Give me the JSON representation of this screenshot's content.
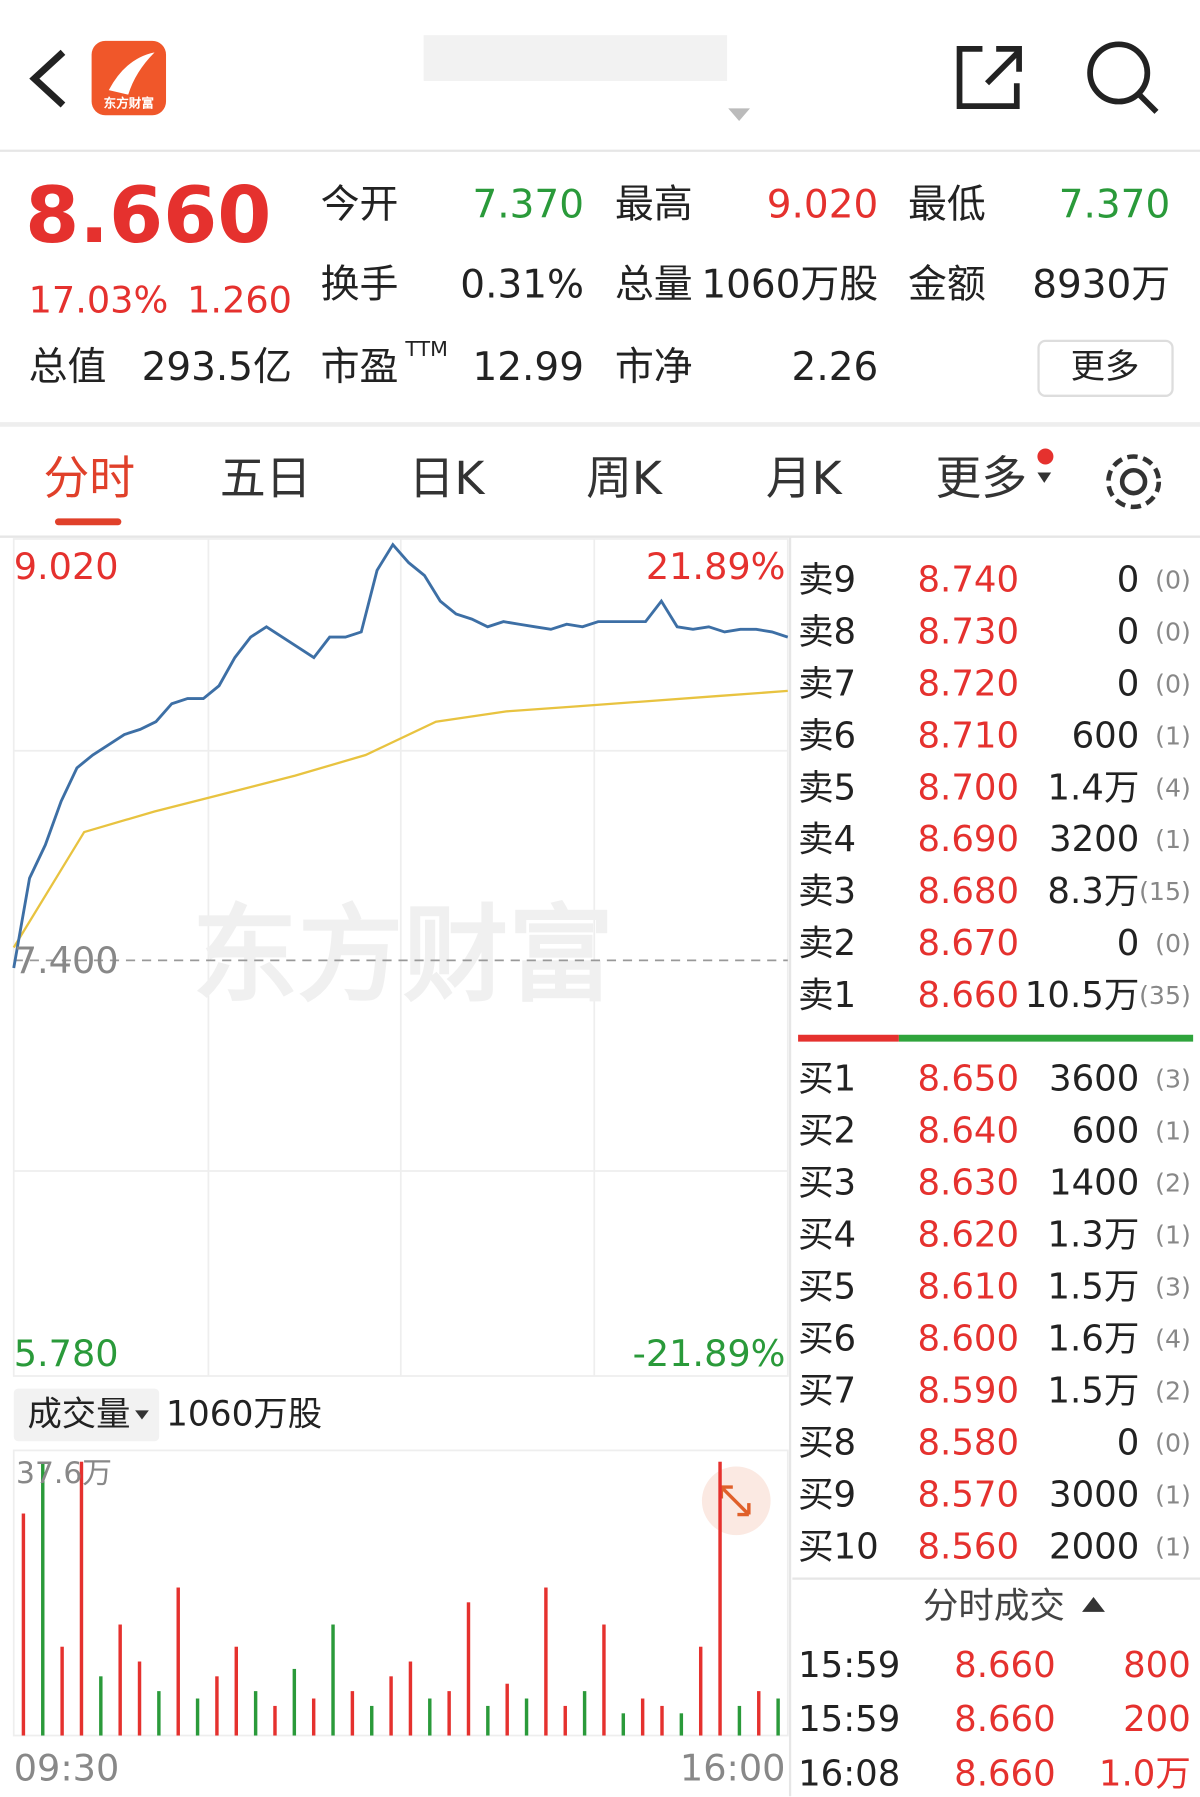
{
  "header": {
    "logo_text": "东方财富"
  },
  "quote": {
    "price": "8.660",
    "change_pct": "17.03%",
    "change": "1.260",
    "stats": [
      {
        "label": "今开",
        "value": "7.370",
        "tone": "down"
      },
      {
        "label": "最高",
        "value": "9.020",
        "tone": "up"
      },
      {
        "label": "最低",
        "value": "7.370",
        "tone": "down"
      },
      {
        "label": "换手",
        "value": "0.31%",
        "tone": "flat"
      },
      {
        "label": "总量",
        "value": "1060万股",
        "tone": "flat"
      },
      {
        "label": "金额",
        "value": "8930万",
        "tone": "flat"
      }
    ],
    "market_cap": {
      "label": "总值",
      "value": "293.5亿"
    },
    "pe": {
      "label": "市盈",
      "sup": "TTM",
      "value": "12.99"
    },
    "pb": {
      "label": "市净",
      "value": "2.26"
    },
    "more": "更多"
  },
  "tabs": [
    "分时",
    "五日",
    "日K",
    "周K",
    "月K",
    "更多"
  ],
  "intraday": {
    "y_top_label": "9.020",
    "y_top_pct": "21.89%",
    "prev_close_label": "7.400",
    "y_bottom_label": "5.780",
    "y_bottom_pct": "-21.89%",
    "ylim": [
      5.78,
      9.02
    ],
    "prev_close": 7.4,
    "watermark": "东方财富",
    "price": [
      7.37,
      7.72,
      7.85,
      8.02,
      8.15,
      8.2,
      8.24,
      8.28,
      8.3,
      8.33,
      8.4,
      8.42,
      8.42,
      8.47,
      8.58,
      8.66,
      8.7,
      8.66,
      8.62,
      8.58,
      8.66,
      8.66,
      8.68,
      8.92,
      9.02,
      8.95,
      8.9,
      8.8,
      8.75,
      8.73,
      8.7,
      8.72,
      8.71,
      8.7,
      8.69,
      8.71,
      8.7,
      8.72,
      8.72,
      8.72,
      8.72,
      8.8,
      8.7,
      8.69,
      8.7,
      8.68,
      8.69,
      8.69,
      8.68,
      8.66
    ],
    "avg": [
      7.45,
      7.9,
      7.98,
      8.05,
      8.12,
      8.2,
      8.33,
      8.37,
      8.39,
      8.41,
      8.43,
      8.45
    ]
  },
  "volume": {
    "selector": "成交量",
    "total": "1060万股",
    "ymax_label": "37.6万",
    "ylim": [
      0,
      37.6
    ],
    "values": [
      30,
      37,
      12,
      37,
      8,
      15,
      10,
      6,
      20,
      5,
      8,
      12,
      6,
      4,
      9,
      5,
      15,
      6,
      4,
      8,
      10,
      5,
      6,
      18,
      4,
      7,
      5,
      20,
      4,
      6,
      15,
      3,
      5,
      4,
      3,
      12,
      37,
      4,
      6,
      5
    ],
    "rise": [
      true,
      false,
      true,
      true,
      false,
      true,
      true,
      false,
      true,
      false,
      true,
      true,
      false,
      true,
      false,
      true,
      false,
      true,
      false,
      true,
      true,
      false,
      true,
      true,
      false,
      true,
      false,
      true,
      true,
      false,
      true,
      false,
      true,
      true,
      false,
      true,
      true,
      false,
      true,
      false
    ],
    "time_start": "09:30",
    "time_end": "16:00"
  },
  "order_book": {
    "asks": [
      {
        "label": "卖9",
        "price": "8.740",
        "volume": "0",
        "count": "(0)"
      },
      {
        "label": "卖8",
        "price": "8.730",
        "volume": "0",
        "count": "(0)"
      },
      {
        "label": "卖7",
        "price": "8.720",
        "volume": "0",
        "count": "(0)"
      },
      {
        "label": "卖6",
        "price": "8.710",
        "volume": "600",
        "count": "(1)"
      },
      {
        "label": "卖5",
        "price": "8.700",
        "volume": "1.4万",
        "count": "(4)"
      },
      {
        "label": "卖4",
        "price": "8.690",
        "volume": "3200",
        "count": "(1)"
      },
      {
        "label": "卖3",
        "price": "8.680",
        "volume": "8.3万",
        "count": "(15)"
      },
      {
        "label": "卖2",
        "price": "8.670",
        "volume": "0",
        "count": "(0)"
      },
      {
        "label": "卖1",
        "price": "8.660",
        "volume": "10.5万",
        "count": "(35)"
      }
    ],
    "bids": [
      {
        "label": "买1",
        "price": "8.650",
        "volume": "3600",
        "count": "(3)"
      },
      {
        "label": "买2",
        "price": "8.640",
        "volume": "600",
        "count": "(1)"
      },
      {
        "label": "买3",
        "price": "8.630",
        "volume": "1400",
        "count": "(2)"
      },
      {
        "label": "买4",
        "price": "8.620",
        "volume": "1.3万",
        "count": "(1)"
      },
      {
        "label": "买5",
        "price": "8.610",
        "volume": "1.5万",
        "count": "(3)"
      },
      {
        "label": "买6",
        "price": "8.600",
        "volume": "1.6万",
        "count": "(4)"
      },
      {
        "label": "买7",
        "price": "8.590",
        "volume": "1.5万",
        "count": "(2)"
      },
      {
        "label": "买8",
        "price": "8.580",
        "volume": "0",
        "count": "(0)"
      },
      {
        "label": "买9",
        "price": "8.570",
        "volume": "3000",
        "count": "(1)"
      },
      {
        "label": "买10",
        "price": "8.560",
        "volume": "2000",
        "count": "(1)"
      }
    ]
  },
  "trades": {
    "title": "分时成交",
    "rows": [
      {
        "time": "15:59",
        "price": "8.660",
        "volume": "800"
      },
      {
        "time": "15:59",
        "price": "8.660",
        "volume": "200"
      },
      {
        "time": "16:08",
        "price": "8.660",
        "volume": "1.0万"
      }
    ]
  }
}
